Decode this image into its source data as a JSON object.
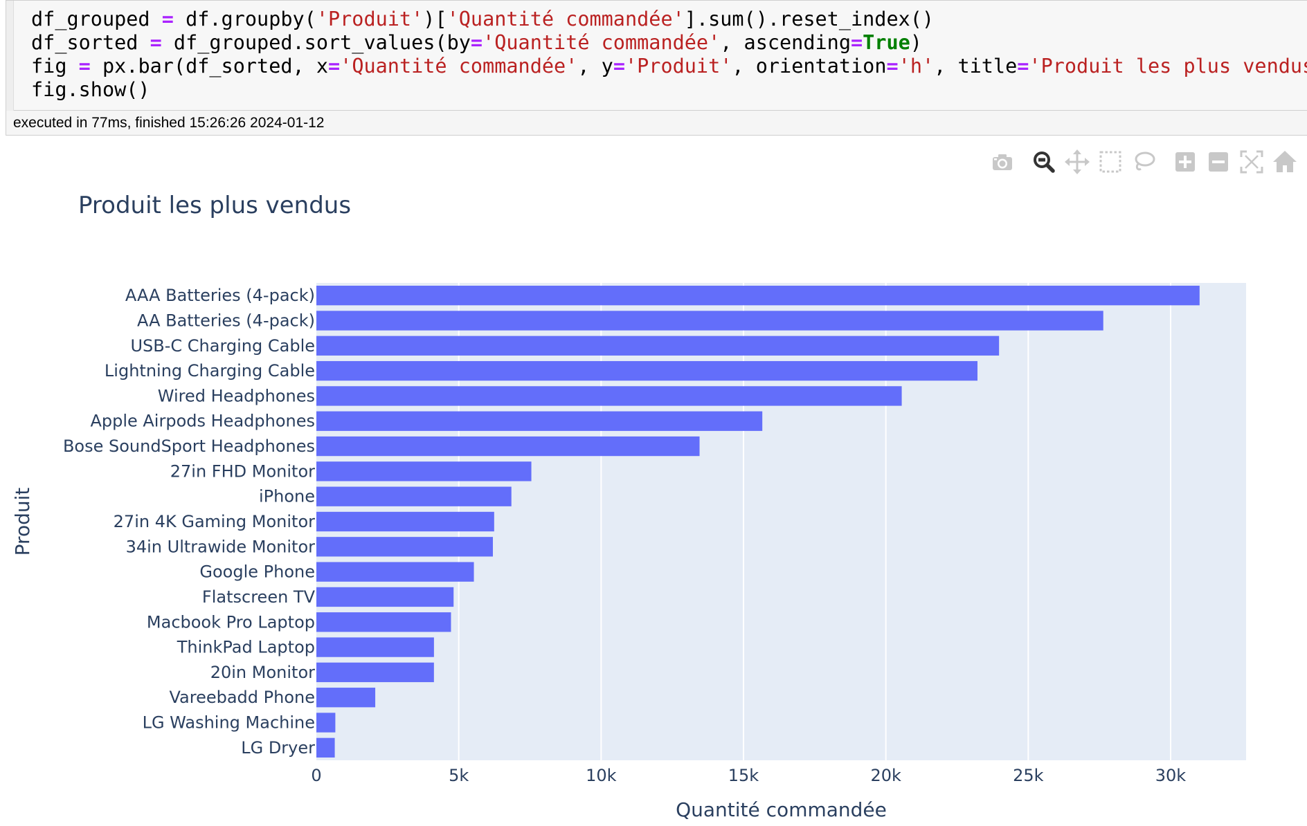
{
  "code_cell": {
    "lines": [
      [
        {
          "t": "df_grouped ",
          "c": ""
        },
        {
          "t": "=",
          "c": "op"
        },
        {
          "t": " df.groupby(",
          "c": ""
        },
        {
          "t": "'Produit'",
          "c": "str"
        },
        {
          "t": ")[",
          "c": ""
        },
        {
          "t": "'Quantité commandée'",
          "c": "str"
        },
        {
          "t": "].sum().reset_index()",
          "c": ""
        }
      ],
      [
        {
          "t": "df_sorted ",
          "c": ""
        },
        {
          "t": "=",
          "c": "op"
        },
        {
          "t": " df_grouped.sort_values(by",
          "c": ""
        },
        {
          "t": "=",
          "c": "op"
        },
        {
          "t": "'Quantité commandée'",
          "c": "str"
        },
        {
          "t": ", ascending",
          "c": ""
        },
        {
          "t": "=",
          "c": "op"
        },
        {
          "t": "True",
          "c": "kw"
        },
        {
          "t": ")",
          "c": ""
        }
      ],
      [
        {
          "t": "fig ",
          "c": ""
        },
        {
          "t": "=",
          "c": "op"
        },
        {
          "t": " px.bar(df_sorted, x",
          "c": ""
        },
        {
          "t": "=",
          "c": "op"
        },
        {
          "t": "'Quantité commandée'",
          "c": "str"
        },
        {
          "t": ", y",
          "c": ""
        },
        {
          "t": "=",
          "c": "op"
        },
        {
          "t": "'Produit'",
          "c": "str"
        },
        {
          "t": ", orientation",
          "c": ""
        },
        {
          "t": "=",
          "c": "op"
        },
        {
          "t": "'h'",
          "c": "str"
        },
        {
          "t": ", title",
          "c": ""
        },
        {
          "t": "=",
          "c": "op"
        },
        {
          "t": "'Produit les plus vendus'",
          "c": "str"
        },
        {
          "t": ")",
          "c": ""
        }
      ],
      [
        {
          "t": "fig.show()",
          "c": ""
        }
      ]
    ]
  },
  "execution_status": "executed in 77ms, finished 15:26:26 2024-01-12",
  "modebar": {
    "buttons": [
      {
        "name": "camera-icon",
        "active": false
      },
      {
        "name": "zoom-icon",
        "active": true
      },
      {
        "name": "pan-icon",
        "active": false
      },
      {
        "name": "box-select-icon",
        "active": false
      },
      {
        "name": "lasso-select-icon",
        "active": false
      },
      {
        "name": "zoom-in-icon",
        "active": false
      },
      {
        "name": "zoom-out-icon",
        "active": false
      },
      {
        "name": "autoscale-icon",
        "active": false
      },
      {
        "name": "reset-axes-icon",
        "active": false
      }
    ]
  },
  "chart_data": {
    "type": "bar",
    "orientation": "h",
    "title": "Produit les plus vendus",
    "xlabel": "Quantité commandée",
    "ylabel": "Produit",
    "xlim": [
      0,
      32650
    ],
    "xticks": [
      0,
      5000,
      10000,
      15000,
      20000,
      25000,
      30000
    ],
    "xtick_labels": [
      "0",
      "5k",
      "10k",
      "15k",
      "20k",
      "25k",
      "30k"
    ],
    "grid": true,
    "bar_color": "#636efa",
    "plot_bg": "#e5ecf6",
    "categories": [
      "AAA Batteries (4-pack)",
      "AA Batteries (4-pack)",
      "USB-C Charging Cable",
      "Lightning Charging Cable",
      "Wired Headphones",
      "Apple Airpods Headphones",
      "Bose SoundSport Headphones",
      "27in FHD Monitor",
      "iPhone",
      "27in 4K Gaming Monitor",
      "34in Ultrawide Monitor",
      "Google Phone",
      "Flatscreen TV",
      "Macbook Pro Laptop",
      "ThinkPad Laptop",
      "20in Monitor",
      "Vareebadd Phone",
      "LG Washing Machine",
      "LG Dryer"
    ],
    "values": [
      31017,
      27635,
      23975,
      23217,
      20557,
      15661,
      13457,
      7550,
      6849,
      6244,
      6199,
      5532,
      4819,
      4728,
      4130,
      4129,
      2068,
      666,
      646
    ]
  }
}
